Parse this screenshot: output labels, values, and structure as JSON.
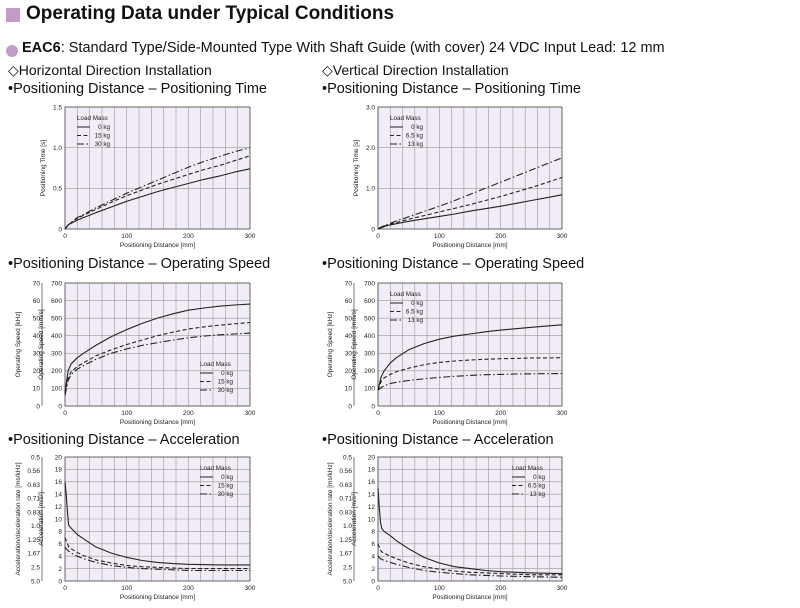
{
  "header": {
    "title": "Operating Data under Typical Conditions",
    "model": "EAC6",
    "description": ": Standard Type/Side-Mounted Type  With Shaft Guide (with cover)  24 VDC Input  Lead: 12 mm"
  },
  "columns": [
    {
      "section": "◇Horizontal Direction Installation"
    },
    {
      "section": "◇Vertical Direction Installation"
    }
  ],
  "colors": {
    "accent": "#c49ac8",
    "plot_background": "#f1ecf6",
    "grid": "#9a9a9a",
    "line": "#222222"
  },
  "chart_data": [
    {
      "type": "line",
      "heading": "•Positioning Distance – Positioning Time",
      "xlabel": "Positioning Distance [mm]",
      "ylabel": "Positioning Time [s]",
      "xlim": [
        0,
        300
      ],
      "ylim": [
        0,
        1.5
      ],
      "xticks": [
        "0",
        "100",
        "200",
        "300"
      ],
      "yticks": [
        "0",
        "0.5",
        "1.0",
        "1.5"
      ],
      "legend_title": "Load Mass",
      "legend_position": "top-left",
      "x": [
        0,
        5,
        10,
        20,
        30,
        50,
        75,
        100,
        125,
        150,
        175,
        200,
        225,
        250,
        275,
        300
      ],
      "series": [
        {
          "name": "0 kg",
          "style": "solid",
          "values": [
            0,
            0.05,
            0.07,
            0.11,
            0.14,
            0.2,
            0.27,
            0.34,
            0.4,
            0.46,
            0.51,
            0.56,
            0.61,
            0.65,
            0.7,
            0.74
          ]
        },
        {
          "name": "15 kg",
          "style": "dashed",
          "values": [
            0,
            0.05,
            0.08,
            0.13,
            0.17,
            0.24,
            0.33,
            0.41,
            0.48,
            0.55,
            0.61,
            0.67,
            0.73,
            0.78,
            0.84,
            0.9
          ]
        },
        {
          "name": "30 kg",
          "style": "dashdot",
          "values": [
            0,
            0.05,
            0.08,
            0.14,
            0.18,
            0.26,
            0.35,
            0.44,
            0.52,
            0.6,
            0.68,
            0.76,
            0.83,
            0.89,
            0.95,
            1.0
          ]
        }
      ]
    },
    {
      "type": "line",
      "heading": "•Positioning Distance – Positioning Time",
      "xlabel": "Positioning Distance [mm]",
      "ylabel": "Positioning Time [s]",
      "xlim": [
        0,
        300
      ],
      "ylim": [
        0,
        3.0
      ],
      "xticks": [
        "0",
        "100",
        "200",
        "300"
      ],
      "yticks": [
        "0",
        "1.0",
        "2.0",
        "3.0"
      ],
      "legend_title": "Load Mass",
      "legend_position": "top-left",
      "x": [
        0,
        5,
        10,
        20,
        30,
        50,
        75,
        100,
        125,
        150,
        175,
        200,
        225,
        250,
        275,
        300
      ],
      "series": [
        {
          "name": "0 kg",
          "style": "solid",
          "values": [
            0,
            0.03,
            0.06,
            0.1,
            0.13,
            0.19,
            0.25,
            0.31,
            0.37,
            0.44,
            0.5,
            0.56,
            0.63,
            0.7,
            0.77,
            0.84
          ]
        },
        {
          "name": "6.5 kg",
          "style": "dashed",
          "values": [
            0,
            0.04,
            0.07,
            0.12,
            0.16,
            0.24,
            0.33,
            0.42,
            0.51,
            0.6,
            0.7,
            0.8,
            0.91,
            1.02,
            1.14,
            1.27
          ]
        },
        {
          "name": "13 kg",
          "style": "dashdot",
          "values": [
            0,
            0.05,
            0.08,
            0.14,
            0.2,
            0.3,
            0.43,
            0.56,
            0.7,
            0.85,
            1.0,
            1.15,
            1.3,
            1.45,
            1.6,
            1.75
          ]
        }
      ]
    },
    {
      "type": "line",
      "heading": "•Positioning Distance – Operating Speed",
      "xlabel": "Positioning Distance [mm]",
      "ylabel": "Operating Speed [mm/s]",
      "ylabel2": "Operating Speed [kHz]",
      "xlim": [
        0,
        300
      ],
      "ylim": [
        0,
        700
      ],
      "y2lim": [
        0,
        70
      ],
      "xticks": [
        "0",
        "100",
        "200",
        "300"
      ],
      "yticks": [
        "0",
        "100",
        "200",
        "300",
        "400",
        "500",
        "600",
        "700"
      ],
      "y2ticks": [
        "0",
        "10",
        "20",
        "30",
        "40",
        "50",
        "60",
        "70"
      ],
      "legend_title": "Load Mass",
      "legend_position": "bottom-right",
      "x": [
        0,
        5,
        10,
        20,
        30,
        50,
        75,
        100,
        125,
        150,
        175,
        200,
        225,
        250,
        275,
        300
      ],
      "series": [
        {
          "name": "0 kg",
          "style": "solid",
          "values": [
            80,
            200,
            240,
            275,
            300,
            345,
            395,
            435,
            470,
            500,
            525,
            545,
            558,
            568,
            575,
            580
          ]
        },
        {
          "name": "15 kg",
          "style": "dashed",
          "values": [
            70,
            160,
            195,
            225,
            245,
            285,
            320,
            350,
            375,
            400,
            420,
            438,
            450,
            460,
            468,
            475
          ]
        },
        {
          "name": "30 kg",
          "style": "dashdot",
          "values": [
            60,
            145,
            180,
            210,
            230,
            265,
            300,
            325,
            345,
            360,
            375,
            388,
            398,
            405,
            410,
            415
          ]
        }
      ]
    },
    {
      "type": "line",
      "heading": "•Positioning Distance – Operating Speed",
      "xlabel": "Positioning Distance [mm]",
      "ylabel": "Operating Speed [mm/s]",
      "ylabel2": "Operating Speed [kHz]",
      "xlim": [
        0,
        300
      ],
      "ylim": [
        0,
        700
      ],
      "y2lim": [
        0,
        70
      ],
      "xticks": [
        "0",
        "100",
        "200",
        "300"
      ],
      "yticks": [
        "0",
        "100",
        "200",
        "300",
        "400",
        "500",
        "600",
        "700"
      ],
      "y2ticks": [
        "0",
        "10",
        "20",
        "30",
        "40",
        "50",
        "60",
        "70"
      ],
      "legend_title": "Load Mass",
      "legend_position": "top-left",
      "x": [
        0,
        5,
        10,
        20,
        30,
        50,
        75,
        100,
        125,
        150,
        175,
        200,
        225,
        250,
        275,
        300
      ],
      "series": [
        {
          "name": "0 kg",
          "style": "solid",
          "values": [
            90,
            165,
            200,
            245,
            275,
            320,
            355,
            380,
            398,
            410,
            422,
            432,
            440,
            448,
            455,
            462
          ]
        },
        {
          "name": "6.5 kg",
          "style": "dashed",
          "values": [
            90,
            140,
            160,
            180,
            195,
            215,
            235,
            248,
            256,
            262,
            266,
            269,
            271,
            273,
            274,
            275
          ]
        },
        {
          "name": "13 kg",
          "style": "dashdot",
          "values": [
            90,
            105,
            115,
            128,
            135,
            145,
            155,
            163,
            169,
            174,
            178,
            180,
            182,
            183,
            184,
            185
          ]
        }
      ]
    },
    {
      "type": "line",
      "heading": "•Positioning Distance – Acceleration",
      "xlabel": "Positioning Distance [mm]",
      "ylabel": "Acceleration [m/s²]",
      "ylabel2": "Acceleration/deceleration rate [ms/kHz]",
      "xlim": [
        0,
        300
      ],
      "ylim": [
        0,
        20
      ],
      "xticks": [
        "0",
        "100",
        "200",
        "300"
      ],
      "yticks": [
        "0",
        "2",
        "4",
        "6",
        "8",
        "10",
        "12",
        "14",
        "16",
        "18",
        "20"
      ],
      "y2ticks": [
        "5.0",
        "2.5",
        "1.67",
        "1.25",
        "1.0",
        "0.83",
        "0.71",
        "0.63",
        "0.56",
        "0.5"
      ],
      "legend_title": "Load Mass",
      "legend_position": "top-right",
      "x": [
        0,
        2,
        4,
        6,
        10,
        20,
        30,
        50,
        75,
        100,
        125,
        150,
        175,
        200,
        250,
        300
      ],
      "series": [
        {
          "name": "0 kg",
          "style": "solid",
          "values": [
            16,
            14,
            11,
            9,
            8.5,
            7.5,
            6.8,
            5.5,
            4.5,
            3.8,
            3.3,
            3.0,
            2.8,
            2.7,
            2.6,
            2.6
          ]
        },
        {
          "name": "15 kg",
          "style": "dashed",
          "values": [
            7,
            6.5,
            6,
            5.5,
            5.2,
            4.6,
            4.1,
            3.4,
            2.9,
            2.5,
            2.3,
            2.2,
            2.1,
            2.0,
            2.0,
            2.0
          ]
        },
        {
          "name": "30 kg",
          "style": "dashdot",
          "values": [
            5.5,
            5.2,
            5,
            4.8,
            4.5,
            4.0,
            3.6,
            3.0,
            2.5,
            2.2,
            2.0,
            1.9,
            1.8,
            1.7,
            1.7,
            1.7
          ]
        }
      ]
    },
    {
      "type": "line",
      "heading": "•Positioning Distance – Acceleration",
      "xlabel": "Positioning Distance [mm]",
      "ylabel": "Acceleration [m/s²]",
      "ylabel2": "Acceleration/deceleration rate [ms/kHz]",
      "xlim": [
        0,
        300
      ],
      "ylim": [
        0,
        20
      ],
      "xticks": [
        "0",
        "100",
        "200",
        "300"
      ],
      "yticks": [
        "0",
        "2",
        "4",
        "6",
        "8",
        "10",
        "12",
        "14",
        "16",
        "18",
        "20"
      ],
      "y2ticks": [
        "5.0",
        "2.5",
        "1.67",
        "1.25",
        "1.0",
        "0.83",
        "0.71",
        "0.63",
        "0.56",
        "0.5"
      ],
      "legend_title": "Load Mass",
      "legend_position": "top-right",
      "x": [
        0,
        2,
        4,
        6,
        10,
        20,
        30,
        50,
        75,
        100,
        125,
        150,
        175,
        200,
        250,
        300
      ],
      "series": [
        {
          "name": "0 kg",
          "style": "solid",
          "values": [
            15,
            12,
            9.5,
            8.5,
            8.0,
            7.3,
            6.5,
            5.2,
            3.8,
            2.9,
            2.3,
            2.0,
            1.7,
            1.5,
            1.3,
            1.2
          ]
        },
        {
          "name": "6.5 kg",
          "style": "dashed",
          "values": [
            6,
            5.5,
            5,
            4.7,
            4.5,
            4.0,
            3.6,
            2.9,
            2.3,
            1.9,
            1.6,
            1.4,
            1.3,
            1.2,
            1.0,
            1.0
          ]
        },
        {
          "name": "13 kg",
          "style": "dashdot",
          "values": [
            4,
            3.8,
            3.6,
            3.5,
            3.3,
            3.0,
            2.7,
            2.2,
            1.7,
            1.4,
            1.2,
            1.0,
            0.9,
            0.8,
            0.7,
            0.6
          ]
        }
      ]
    }
  ]
}
